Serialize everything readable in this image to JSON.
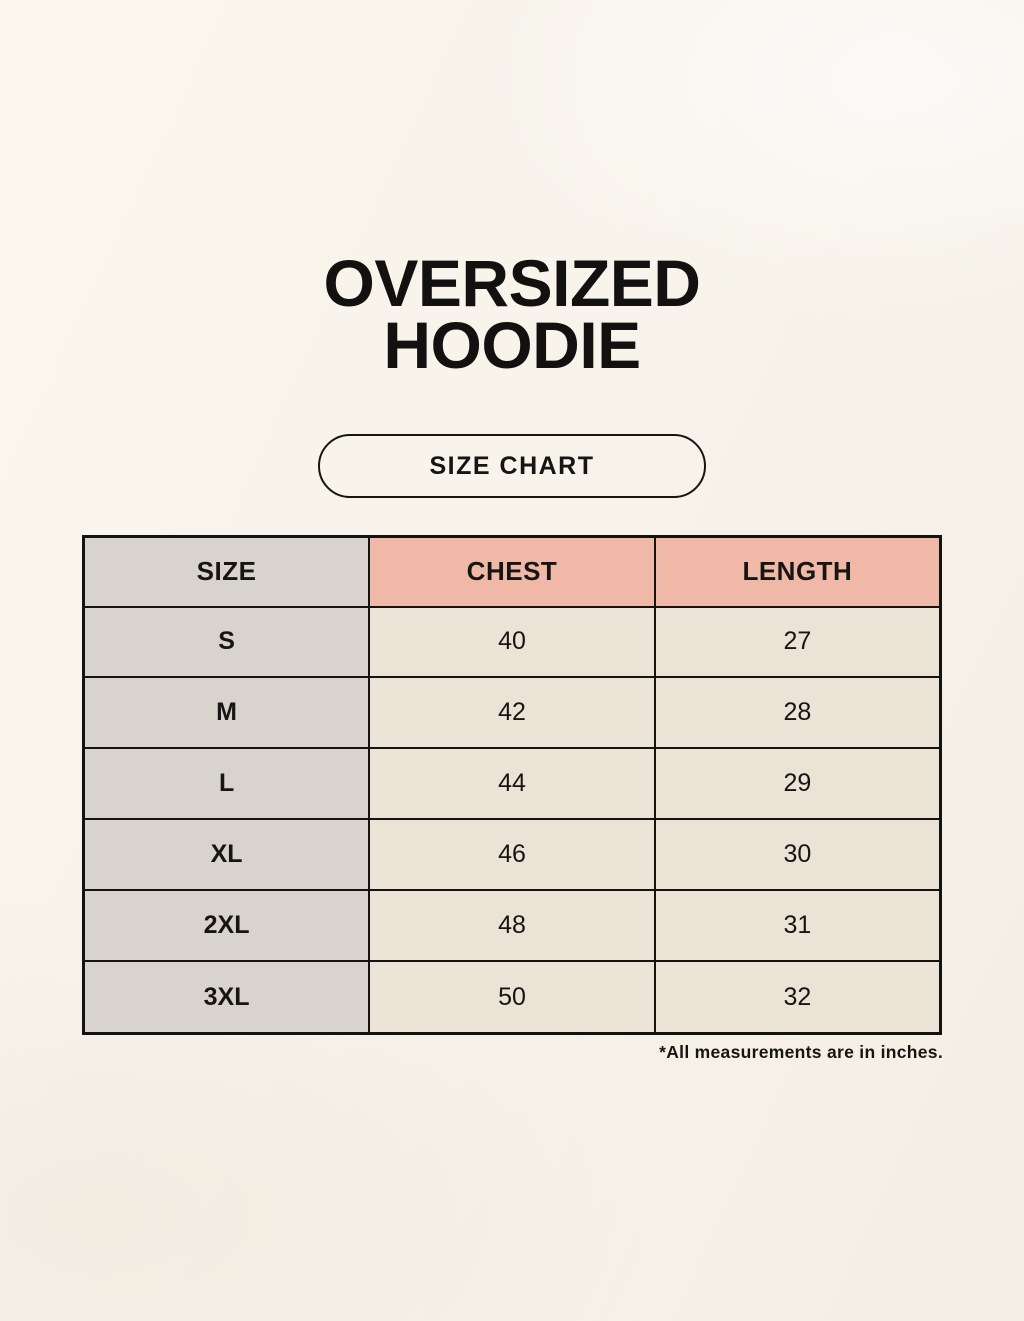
{
  "header": {
    "title_lines": [
      "OVERSIZED",
      "HOODIE"
    ],
    "badge_label": "SIZE CHART"
  },
  "table": {
    "headers": [
      "SIZE",
      "CHEST",
      "LENGTH"
    ],
    "rows": [
      [
        "S",
        "40",
        "27"
      ],
      [
        "M",
        "42",
        "28"
      ],
      [
        "L",
        "44",
        "29"
      ],
      [
        "XL",
        "46",
        "30"
      ],
      [
        "2XL",
        "48",
        "31"
      ],
      [
        "3XL",
        "50",
        "32"
      ]
    ]
  },
  "footnote": "*All measurements are in inches.",
  "colors": {
    "background": "#f8f4ec",
    "size_col_bg": "#d9d3cd",
    "accent_header_bg": "#f0b9a7",
    "value_cell_bg": "#eae3d6",
    "border": "#151310",
    "text": "#171513"
  },
  "chart_data": {
    "type": "table",
    "title": "OVERSIZED HOODIE",
    "subtitle": "SIZE CHART",
    "columns": [
      "SIZE",
      "CHEST",
      "LENGTH"
    ],
    "rows": [
      {
        "size": "S",
        "chest": 40,
        "length": 27
      },
      {
        "size": "M",
        "chest": 42,
        "length": 28
      },
      {
        "size": "L",
        "chest": 44,
        "length": 29
      },
      {
        "size": "XL",
        "chest": 46,
        "length": 30
      },
      {
        "size": "2XL",
        "chest": 48,
        "length": 31
      },
      {
        "size": "3XL",
        "chest": 50,
        "length": 32
      }
    ],
    "units": "inches",
    "note": "*All measurements are in inches."
  }
}
